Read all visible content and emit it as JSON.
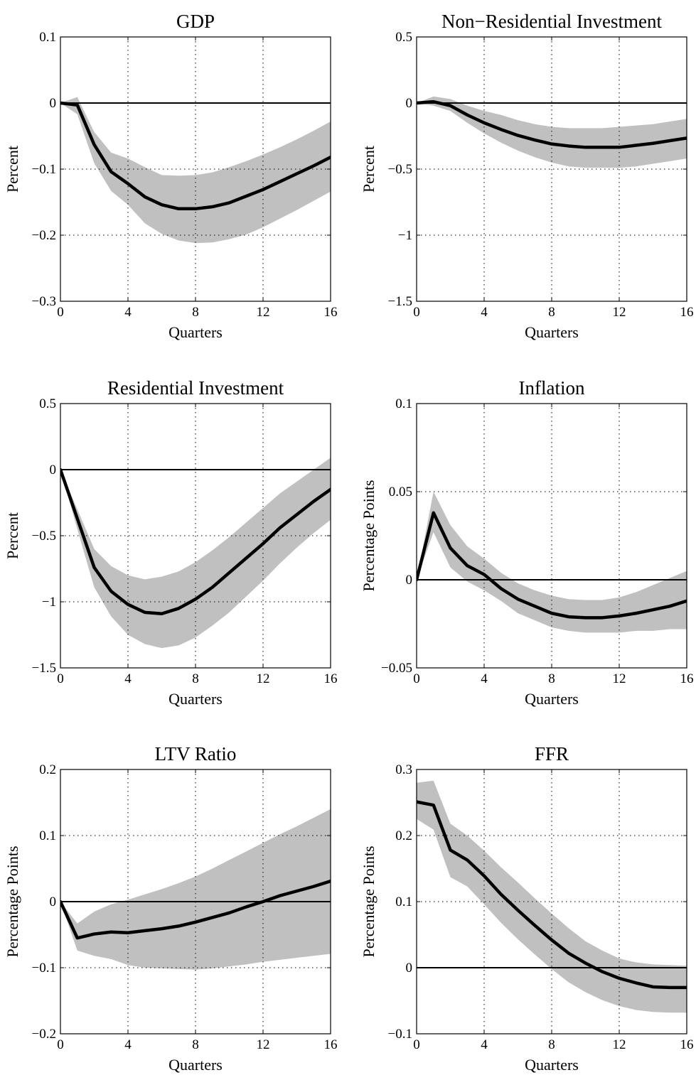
{
  "figure": {
    "colors": {
      "band": "#c0c0c0",
      "line": "#000000",
      "zero_line": "#000000"
    }
  },
  "chart_data": [
    {
      "type": "line",
      "title": "GDP",
      "xlabel": "Quarters",
      "ylabel": "Percent",
      "xlim": [
        0,
        16
      ],
      "ylim": [
        -0.3,
        0.1
      ],
      "xticks": [
        0,
        4,
        8,
        12,
        16
      ],
      "xtick_labels": [
        "0",
        "4",
        "8",
        "12",
        "16"
      ],
      "yticks": [
        -0.3,
        -0.2,
        -0.1,
        0,
        0.1
      ],
      "ytick_labels": [
        "−0.3",
        "−0.2",
        "−0.1",
        "0",
        "0.1"
      ],
      "grid": true,
      "x": [
        0,
        1,
        2,
        3,
        4,
        5,
        6,
        7,
        8,
        9,
        10,
        11,
        12,
        13,
        14,
        15,
        16
      ],
      "series": [
        {
          "role": "median",
          "values": [
            0,
            -0.003,
            -0.063,
            -0.104,
            -0.122,
            -0.142,
            -0.154,
            -0.16,
            -0.16,
            -0.157,
            -0.151,
            -0.141,
            -0.131,
            -0.119,
            -0.107,
            -0.095,
            -0.082
          ]
        },
        {
          "role": "band_upper",
          "values": [
            0,
            0.009,
            -0.044,
            -0.075,
            -0.084,
            -0.097,
            -0.109,
            -0.11,
            -0.109,
            -0.105,
            -0.097,
            -0.088,
            -0.078,
            -0.067,
            -0.055,
            -0.042,
            -0.028
          ]
        },
        {
          "role": "band_lower",
          "values": [
            0,
            -0.017,
            -0.091,
            -0.133,
            -0.154,
            -0.182,
            -0.198,
            -0.208,
            -0.212,
            -0.211,
            -0.206,
            -0.199,
            -0.188,
            -0.175,
            -0.162,
            -0.148,
            -0.134
          ]
        }
      ]
    },
    {
      "type": "line",
      "title": "Non−Residential Investment",
      "xlabel": "Quarters",
      "ylabel": "Percent",
      "xlim": [
        0,
        16
      ],
      "ylim": [
        -1.5,
        0.5
      ],
      "xticks": [
        0,
        4,
        8,
        12,
        16
      ],
      "xtick_labels": [
        "0",
        "4",
        "8",
        "12",
        "16"
      ],
      "yticks": [
        -1.5,
        -1,
        -0.5,
        0,
        0.5
      ],
      "ytick_labels": [
        "−1.5",
        "−1",
        "−0.5",
        "0",
        "0.5"
      ],
      "grid": true,
      "x": [
        0,
        1,
        2,
        3,
        4,
        5,
        6,
        7,
        8,
        9,
        10,
        11,
        12,
        13,
        14,
        15,
        16
      ],
      "series": [
        {
          "role": "median",
          "values": [
            0,
            0.01,
            -0.02,
            -0.09,
            -0.15,
            -0.2,
            -0.245,
            -0.28,
            -0.31,
            -0.325,
            -0.335,
            -0.335,
            -0.335,
            -0.32,
            -0.305,
            -0.285,
            -0.265
          ]
        },
        {
          "role": "band_upper",
          "values": [
            0,
            0.05,
            0.03,
            -0.02,
            -0.06,
            -0.09,
            -0.13,
            -0.16,
            -0.18,
            -0.19,
            -0.19,
            -0.19,
            -0.18,
            -0.17,
            -0.16,
            -0.14,
            -0.12
          ]
        },
        {
          "role": "band_lower",
          "values": [
            0,
            -0.02,
            -0.06,
            -0.15,
            -0.23,
            -0.3,
            -0.36,
            -0.41,
            -0.45,
            -0.48,
            -0.49,
            -0.49,
            -0.49,
            -0.48,
            -0.46,
            -0.44,
            -0.42
          ]
        }
      ]
    },
    {
      "type": "line",
      "title": "Residential Investment",
      "xlabel": "Quarters",
      "ylabel": "Percent",
      "xlim": [
        0,
        16
      ],
      "ylim": [
        -1.5,
        0.5
      ],
      "xticks": [
        0,
        4,
        8,
        12,
        16
      ],
      "xtick_labels": [
        "0",
        "4",
        "8",
        "12",
        "16"
      ],
      "yticks": [
        -1.5,
        -1,
        -0.5,
        0,
        0.5
      ],
      "ytick_labels": [
        "−1.5",
        "−1",
        "−0.5",
        "0",
        "0.5"
      ],
      "grid": true,
      "x": [
        0,
        1,
        2,
        3,
        4,
        5,
        6,
        7,
        8,
        9,
        10,
        11,
        12,
        13,
        14,
        15,
        16
      ],
      "series": [
        {
          "role": "median",
          "values": [
            0,
            -0.37,
            -0.74,
            -0.92,
            -1.02,
            -1.08,
            -1.09,
            -1.05,
            -0.98,
            -0.89,
            -0.78,
            -0.67,
            -0.56,
            -0.44,
            -0.34,
            -0.24,
            -0.15
          ]
        },
        {
          "role": "band_upper",
          "values": [
            0,
            -0.3,
            -0.6,
            -0.73,
            -0.8,
            -0.83,
            -0.81,
            -0.77,
            -0.7,
            -0.61,
            -0.51,
            -0.4,
            -0.29,
            -0.18,
            -0.09,
            0.0,
            0.09
          ]
        },
        {
          "role": "band_lower",
          "values": [
            0,
            -0.45,
            -0.89,
            -1.11,
            -1.25,
            -1.32,
            -1.35,
            -1.33,
            -1.27,
            -1.18,
            -1.08,
            -0.96,
            -0.84,
            -0.71,
            -0.59,
            -0.48,
            -0.38
          ]
        }
      ]
    },
    {
      "type": "line",
      "title": "Inflation",
      "xlabel": "Quarters",
      "ylabel": "Percentage Points",
      "xlim": [
        0,
        16
      ],
      "ylim": [
        -0.05,
        0.1
      ],
      "xticks": [
        0,
        4,
        8,
        12,
        16
      ],
      "xtick_labels": [
        "0",
        "4",
        "8",
        "12",
        "16"
      ],
      "yticks": [
        -0.05,
        0,
        0.05,
        0.1
      ],
      "ytick_labels": [
        "−0.05",
        "0",
        "0.05",
        "0.1"
      ],
      "grid": true,
      "x": [
        0,
        1,
        2,
        3,
        4,
        5,
        6,
        7,
        8,
        9,
        10,
        11,
        12,
        13,
        14,
        15,
        16
      ],
      "series": [
        {
          "role": "median",
          "values": [
            0,
            0.038,
            0.018,
            0.008,
            0.003,
            -0.005,
            -0.011,
            -0.015,
            -0.019,
            -0.021,
            -0.0215,
            -0.0215,
            -0.0205,
            -0.019,
            -0.017,
            -0.015,
            -0.012
          ]
        },
        {
          "role": "band_upper",
          "values": [
            0,
            0.05,
            0.031,
            0.019,
            0.012,
            0.004,
            -0.002,
            -0.006,
            -0.009,
            -0.011,
            -0.0115,
            -0.0115,
            -0.01,
            -0.007,
            -0.003,
            0.001,
            0.005
          ]
        },
        {
          "role": "band_lower",
          "values": [
            0,
            0.027,
            0.007,
            -0.001,
            -0.006,
            -0.012,
            -0.019,
            -0.023,
            -0.027,
            -0.029,
            -0.03,
            -0.03,
            -0.03,
            -0.029,
            -0.029,
            -0.028,
            -0.028
          ]
        }
      ]
    },
    {
      "type": "line",
      "title": "LTV Ratio",
      "xlabel": "Quarters",
      "ylabel": "Percentage Points",
      "xlim": [
        0,
        16
      ],
      "ylim": [
        -0.2,
        0.2
      ],
      "xticks": [
        0,
        4,
        8,
        12,
        16
      ],
      "xtick_labels": [
        "0",
        "4",
        "8",
        "12",
        "16"
      ],
      "yticks": [
        -0.2,
        -0.1,
        0,
        0.1,
        0.2
      ],
      "ytick_labels": [
        "−0.2",
        "−0.1",
        "0",
        "0.1",
        "0.2"
      ],
      "grid": true,
      "x": [
        0,
        1,
        2,
        3,
        4,
        5,
        6,
        7,
        8,
        9,
        10,
        11,
        12,
        13,
        14,
        15,
        16
      ],
      "series": [
        {
          "role": "median",
          "values": [
            0,
            -0.055,
            -0.049,
            -0.046,
            -0.047,
            -0.044,
            -0.041,
            -0.037,
            -0.031,
            -0.024,
            -0.017,
            -0.008,
            0.0,
            0.009,
            0.016,
            0.023,
            0.031
          ]
        },
        {
          "role": "band_upper",
          "values": [
            0,
            -0.033,
            -0.015,
            -0.004,
            0.003,
            0.011,
            0.019,
            0.028,
            0.038,
            0.05,
            0.063,
            0.076,
            0.089,
            0.102,
            0.114,
            0.127,
            0.14
          ]
        },
        {
          "role": "band_lower",
          "values": [
            0,
            -0.074,
            -0.082,
            -0.087,
            -0.096,
            -0.1,
            -0.101,
            -0.102,
            -0.103,
            -0.101,
            -0.098,
            -0.095,
            -0.091,
            -0.088,
            -0.085,
            -0.082,
            -0.079
          ]
        }
      ]
    },
    {
      "type": "line",
      "title": "FFR",
      "xlabel": "Quarters",
      "ylabel": "Percentage Points",
      "xlim": [
        0,
        16
      ],
      "ylim": [
        -0.1,
        0.3
      ],
      "xticks": [
        0,
        4,
        8,
        12,
        16
      ],
      "xtick_labels": [
        "0",
        "4",
        "8",
        "12",
        "16"
      ],
      "yticks": [
        -0.1,
        0,
        0.1,
        0.2,
        0.3
      ],
      "ytick_labels": [
        "−0.1",
        "0",
        "0.1",
        "0.2",
        "0.3"
      ],
      "grid": true,
      "x": [
        0,
        1,
        2,
        3,
        4,
        5,
        6,
        7,
        8,
        9,
        10,
        11,
        12,
        13,
        14,
        15,
        16
      ],
      "series": [
        {
          "role": "median",
          "values": [
            0.251,
            0.246,
            0.178,
            0.163,
            0.139,
            0.111,
            0.087,
            0.064,
            0.042,
            0.022,
            0.007,
            -0.006,
            -0.016,
            -0.023,
            -0.029,
            -0.03,
            -0.03
          ]
        },
        {
          "role": "band_upper",
          "values": [
            0.28,
            0.283,
            0.218,
            0.2,
            0.177,
            0.152,
            0.129,
            0.105,
            0.082,
            0.06,
            0.04,
            0.026,
            0.014,
            0.008,
            0.005,
            0.004,
            0.003
          ]
        },
        {
          "role": "band_lower",
          "values": [
            0.225,
            0.209,
            0.137,
            0.123,
            0.096,
            0.068,
            0.043,
            0.02,
            -0.002,
            -0.022,
            -0.037,
            -0.049,
            -0.058,
            -0.064,
            -0.067,
            -0.068,
            -0.068
          ]
        }
      ]
    }
  ]
}
